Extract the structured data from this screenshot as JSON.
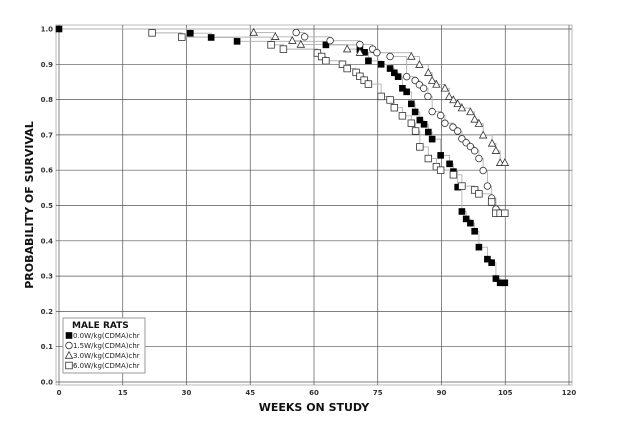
{
  "chart_data": {
    "type": "line",
    "subtype": "kaplan-meier step",
    "title": "",
    "xlabel": "WEEKS ON STUDY",
    "ylabel": "PROBABILITY OF SURVIVAL",
    "xlim": [
      0,
      120
    ],
    "ylim": [
      0,
      1.0
    ],
    "xticks": [
      "0",
      "15",
      "30",
      "45",
      "60",
      "75",
      "90",
      "105",
      "120"
    ],
    "yticks": [
      "0.0",
      "0.1",
      "0.2",
      "0.3",
      "0.4",
      "0.5",
      "0.6",
      "0.7",
      "0.8",
      "0.9",
      "1.0"
    ],
    "grid": true,
    "legend": {
      "title": "MALE RATS",
      "placement": "bottom-left"
    },
    "step_line_color": "#b0b0b0",
    "series": [
      {
        "name": "0.0W/kg(CDMA)chr",
        "marker": "filled-square",
        "x": [
          0,
          30.9,
          35.8,
          41.9,
          62.8,
          70.8,
          71.9,
          72.8,
          75.8,
          77.9,
          78.9,
          79.8,
          80.8,
          81.8,
          82.9,
          83.8,
          84.9,
          85.9,
          86.9,
          87.8,
          89.8,
          91.9,
          92.8,
          93.8,
          94.8,
          95.8,
          96.8,
          97.8,
          98.8,
          100.8,
          101.8,
          102.8,
          103.8,
          104.9
        ],
        "y": [
          1.0,
          0.988,
          0.976,
          0.965,
          0.955,
          0.942,
          0.934,
          0.91,
          0.9,
          0.888,
          0.876,
          0.865,
          0.832,
          0.822,
          0.788,
          0.765,
          0.742,
          0.73,
          0.708,
          0.688,
          0.642,
          0.618,
          0.596,
          0.552,
          0.483,
          0.462,
          0.45,
          0.427,
          0.382,
          0.348,
          0.338,
          0.293,
          0.281,
          0.281
        ]
      },
      {
        "name": "1.5W/kg(CDMA)chr",
        "marker": "open-circle",
        "x": [
          55.8,
          57.8,
          63.8,
          70.8,
          73.8,
          74.8,
          77.9,
          81.8,
          83.8,
          84.8,
          85.8,
          86.8,
          87.8,
          89.8,
          90.8,
          92.7,
          93.8,
          94.8,
          95.8,
          96.8,
          97.8,
          98.8,
          99.8,
          100.8,
          101.8,
          102.8,
          103.8
        ],
        "y": [
          0.99,
          0.978,
          0.967,
          0.956,
          0.943,
          0.933,
          0.922,
          0.865,
          0.854,
          0.842,
          0.832,
          0.809,
          0.766,
          0.755,
          0.733,
          0.722,
          0.711,
          0.689,
          0.678,
          0.667,
          0.655,
          0.633,
          0.599,
          0.555,
          0.521,
          0.49,
          0.479
        ]
      },
      {
        "name": "3.0W/kg(CDMA)chr",
        "marker": "open-triangle",
        "x": [
          45.8,
          50.9,
          54.9,
          56.9,
          67.8,
          70.8,
          82.9,
          84.8,
          86.9,
          87.8,
          88.8,
          90.8,
          91.8,
          92.8,
          93.8,
          94.8,
          96.8,
          97.8,
          98.8,
          99.8,
          101.9,
          102.8,
          103.8,
          104.9
        ],
        "y": [
          0.99,
          0.978,
          0.967,
          0.956,
          0.943,
          0.933,
          0.922,
          0.899,
          0.876,
          0.854,
          0.843,
          0.832,
          0.808,
          0.799,
          0.788,
          0.776,
          0.765,
          0.744,
          0.732,
          0.699,
          0.676,
          0.655,
          0.621,
          0.621
        ]
      },
      {
        "name": "6.0W/kg(CDMA)chr",
        "marker": "open-square",
        "x": [
          21.9,
          28.9,
          49.9,
          52.8,
          60.8,
          61.8,
          62.8,
          66.7,
          67.8,
          69.9,
          70.8,
          71.8,
          72.8,
          75.8,
          77.9,
          78.9,
          80.8,
          82.9,
          83.9,
          84.9,
          86.9,
          88.8,
          89.8,
          92.8,
          94.8,
          97.8,
          98.8,
          101.8,
          102.8,
          103.8,
          104.9
        ],
        "y": [
          0.989,
          0.977,
          0.955,
          0.943,
          0.932,
          0.922,
          0.91,
          0.9,
          0.888,
          0.877,
          0.866,
          0.855,
          0.844,
          0.809,
          0.799,
          0.777,
          0.754,
          0.733,
          0.711,
          0.666,
          0.633,
          0.61,
          0.6,
          0.587,
          0.555,
          0.544,
          0.533,
          0.51,
          0.478,
          0.478,
          0.478
        ]
      }
    ]
  }
}
